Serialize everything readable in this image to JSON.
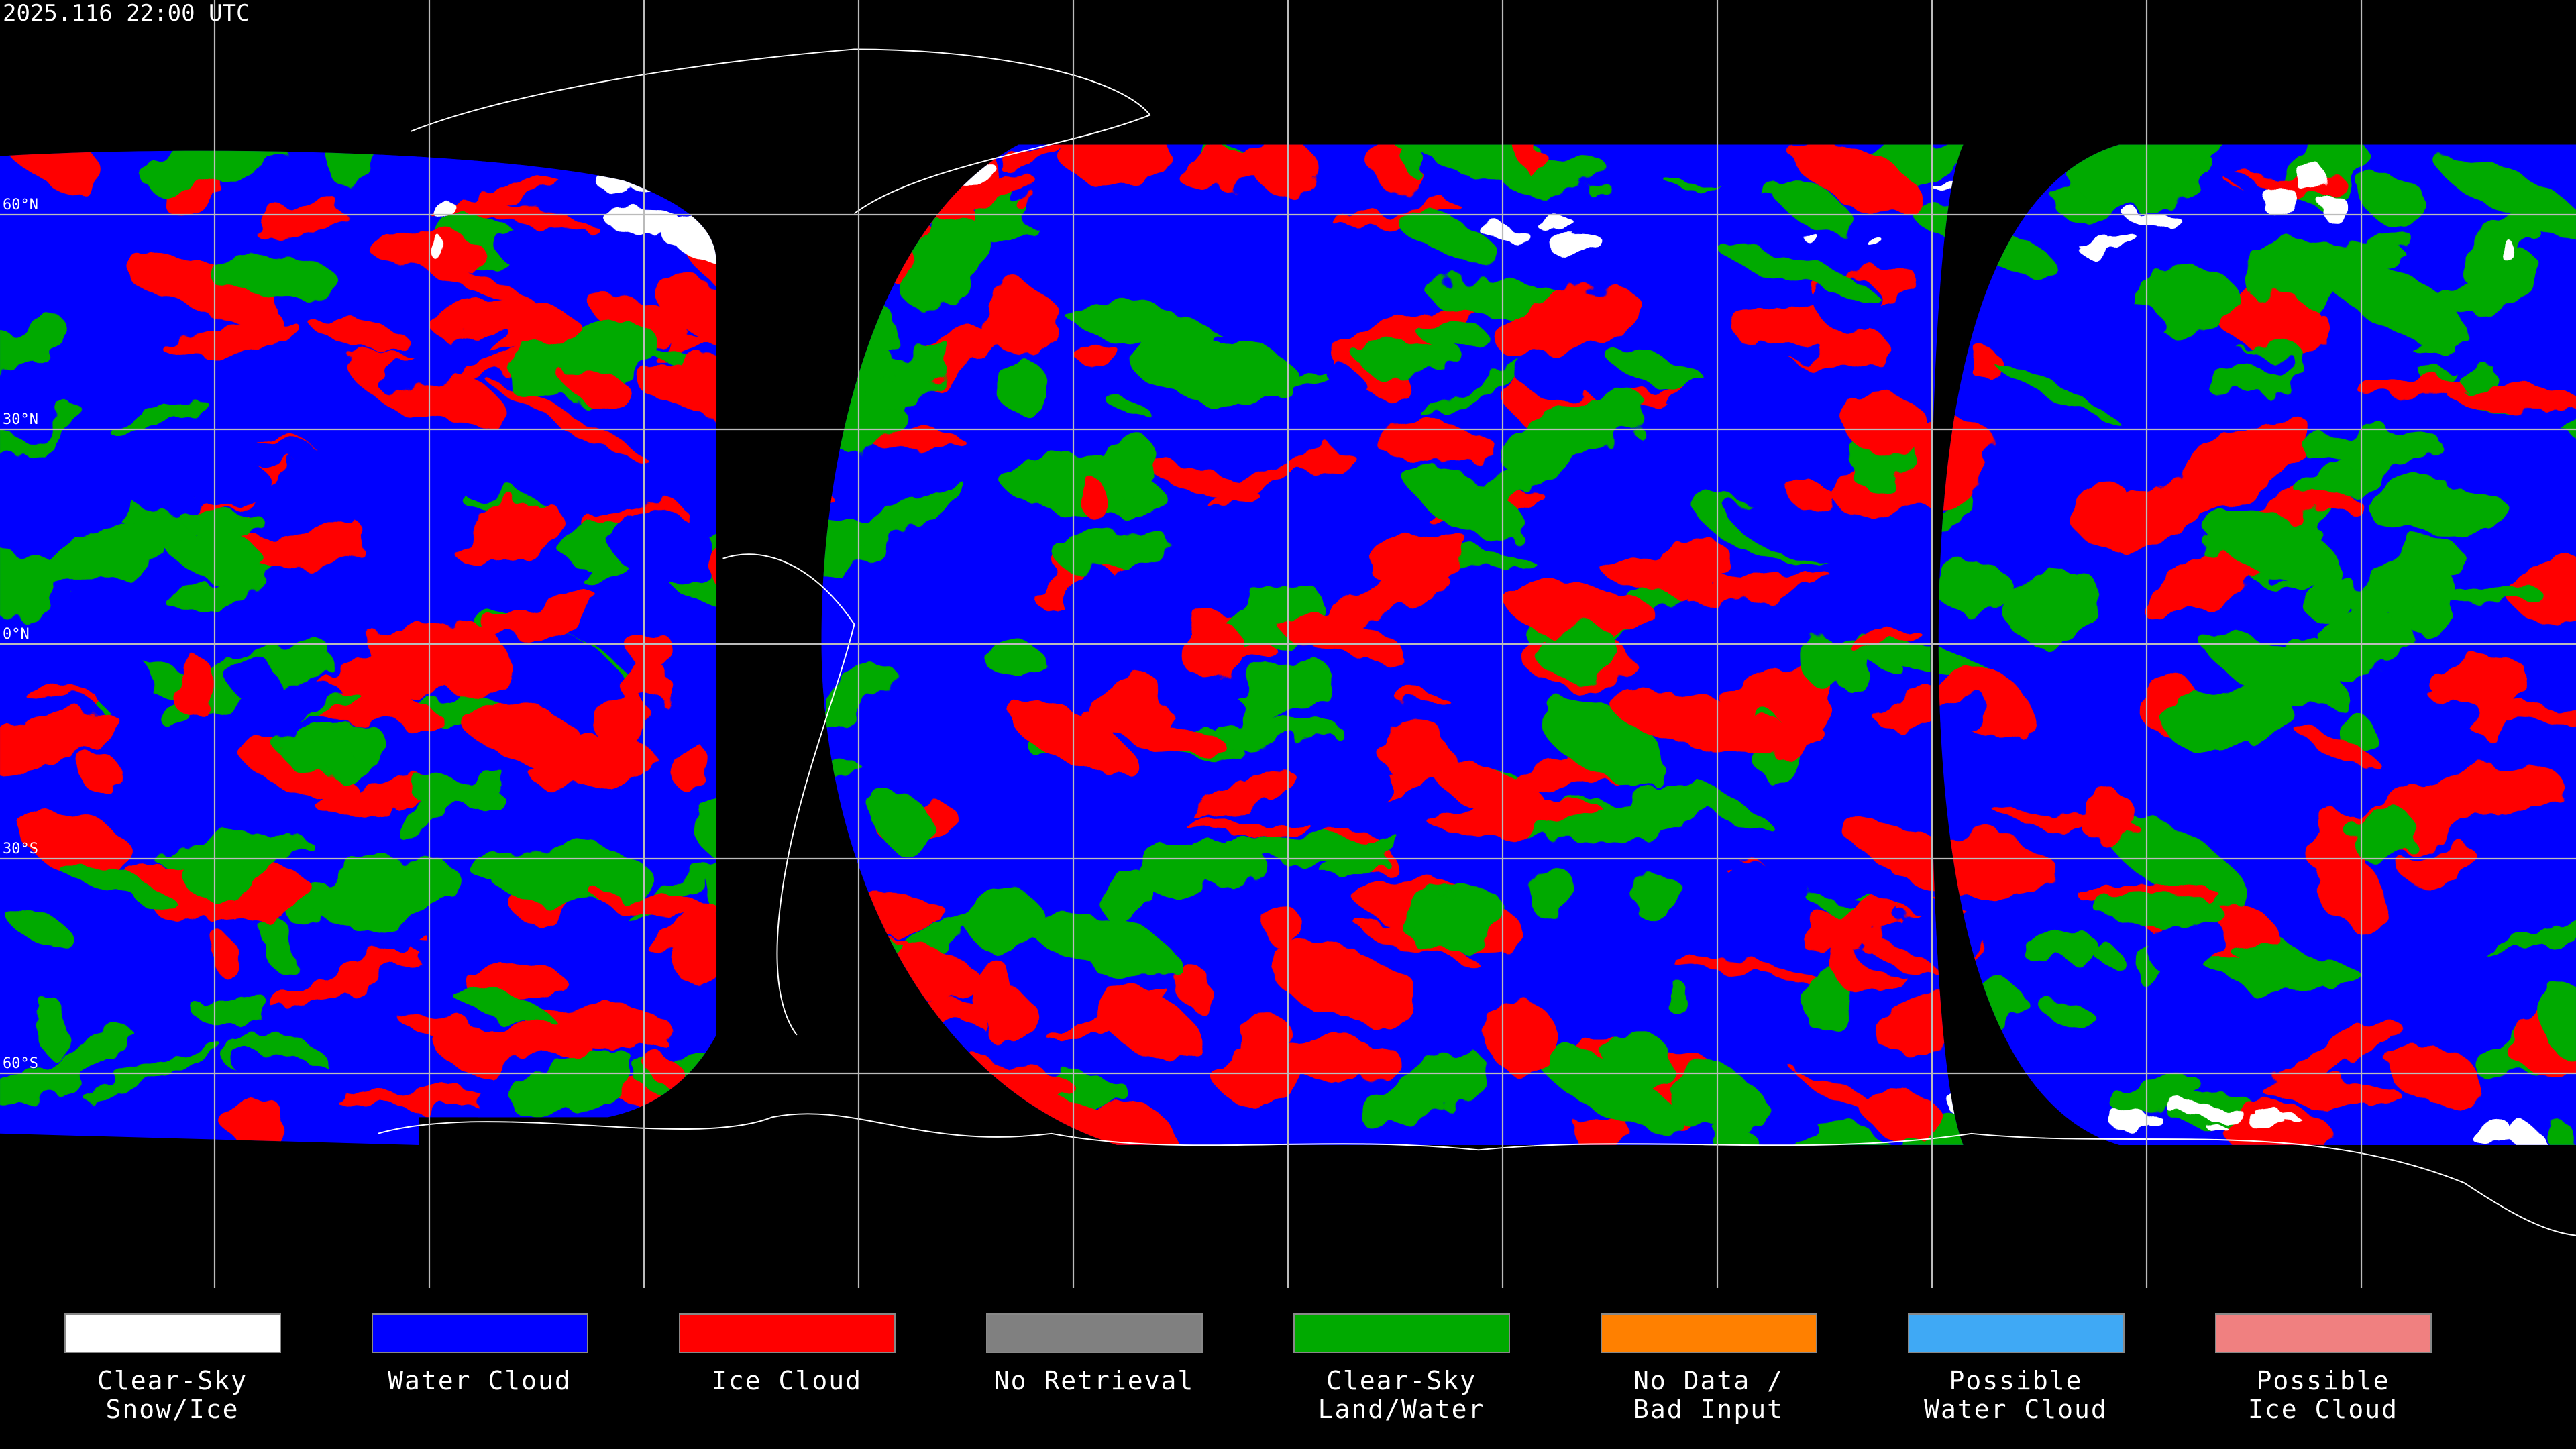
{
  "header": {
    "title": "2025.116 22:00 UTC"
  },
  "map": {
    "latitude_lines": [
      {
        "value": 60,
        "label": "60°N"
      },
      {
        "value": 30,
        "label": "30°N"
      },
      {
        "value": 0,
        "label": "0°N"
      },
      {
        "value": -30,
        "label": "30°S"
      },
      {
        "value": -60,
        "label": "60°S"
      }
    ]
  },
  "legend": {
    "items": [
      {
        "label": "Clear-Sky\nSnow/Ice",
        "color": "#ffffff"
      },
      {
        "label": "Water Cloud",
        "color": "#0000ff"
      },
      {
        "label": "Ice Cloud",
        "color": "#ff0000"
      },
      {
        "label": "No Retrieval",
        "color": "#808080"
      },
      {
        "label": "Clear-Sky\nLand/Water",
        "color": "#00aa00"
      },
      {
        "label": "No Data /\nBad Input",
        "color": "#ff8000"
      },
      {
        "label": "Possible\nWater Cloud",
        "color": "#3fa9f5"
      },
      {
        "label": "Possible\nIce Cloud",
        "color": "#f08080"
      }
    ]
  }
}
